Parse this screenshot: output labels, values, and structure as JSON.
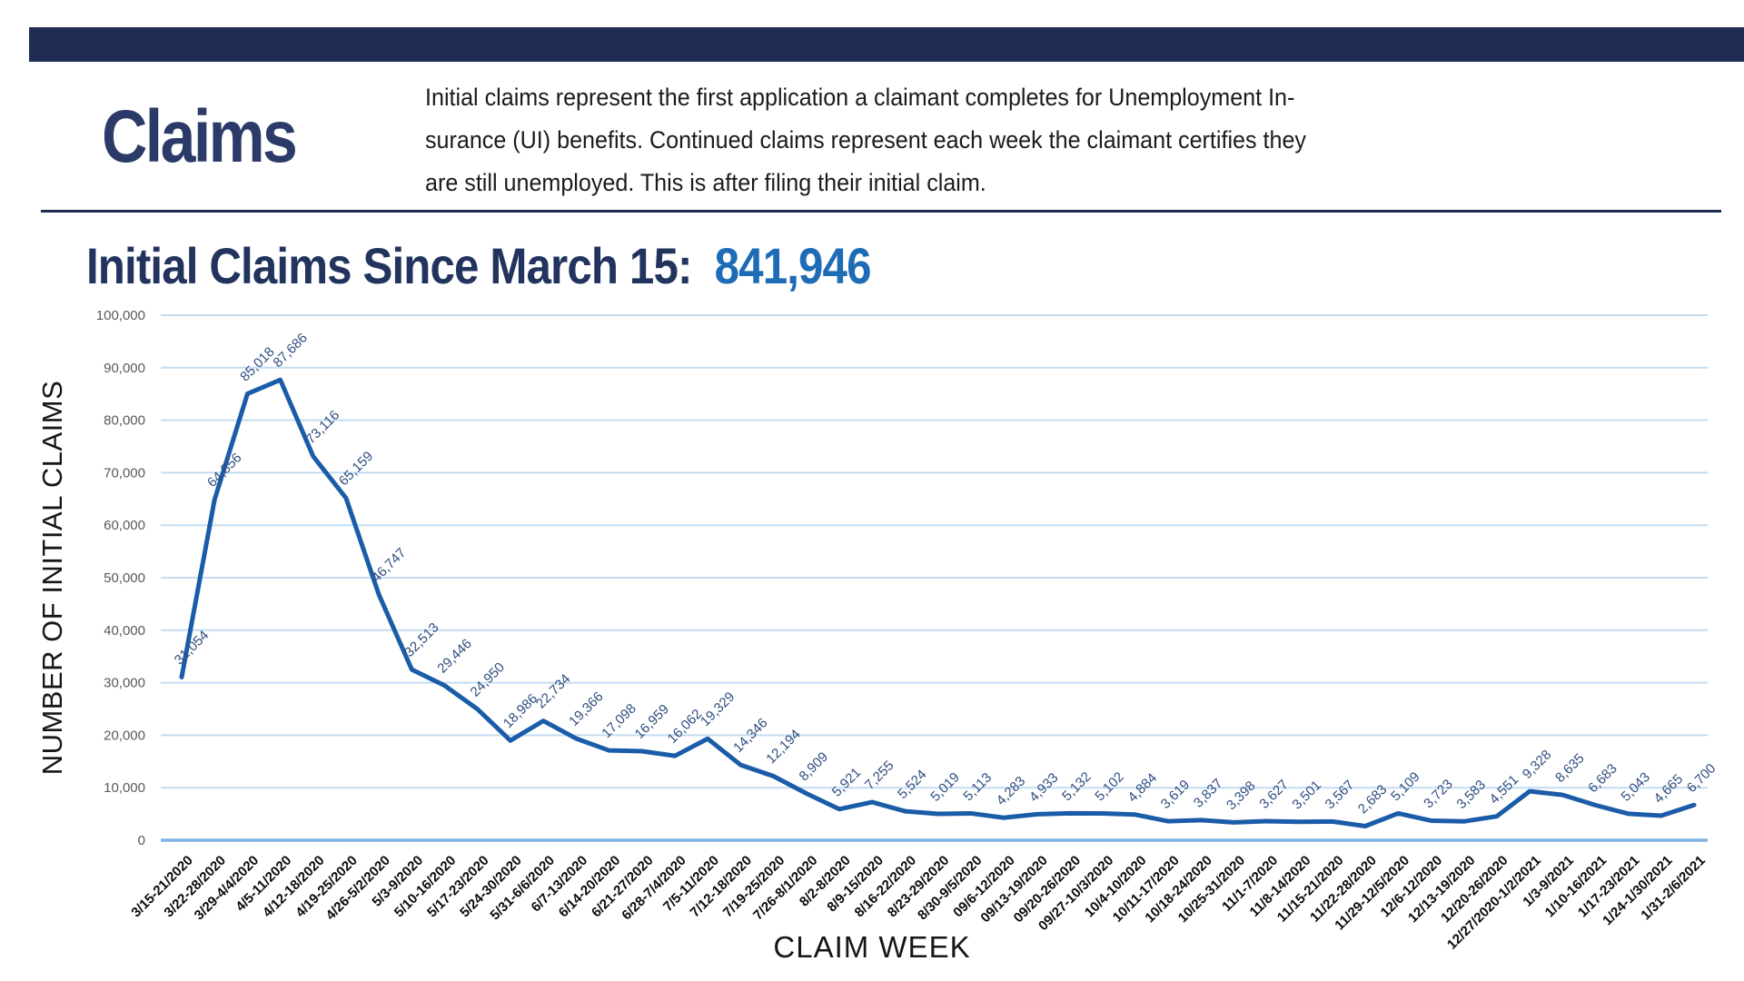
{
  "header": {
    "title": "Claims",
    "description_lines": [
      "Initial claims represent the first application a claimant completes for Unemployment In-",
      "surance (UI) benefits. Continued claims represent each week the claimant certifies they",
      "are still unemployed. This is after filing their initial claim."
    ]
  },
  "chart_title": {
    "prefix": "Initial Claims Since March 15:",
    "value": "841,946"
  },
  "colors": {
    "accent_navy": "#1f2d54",
    "heading_navy": "#2b3a68",
    "title_navy": "#22345e",
    "total_value_blue": "#1e6cb5"
  },
  "chart_data": {
    "type": "line",
    "title": "Initial Claims Since March 15: 841,946",
    "xlabel": "CLAIM WEEK",
    "ylabel": "NUMBER OF INITIAL CLAIMS",
    "ylim": [
      0,
      100000
    ],
    "ytick_step": 10000,
    "ytick_labels": [
      "0",
      "10,000",
      "20,000",
      "30,000",
      "40,000",
      "50,000",
      "60,000",
      "70,000",
      "80,000",
      "90,000",
      "100,000"
    ],
    "grid": true,
    "legend": "none",
    "colors": {
      "line": "#1a5ca8",
      "gridline": "#c3dcf1",
      "axis_line": "#7fb2e0",
      "data_label": "#2f4d7f",
      "ytick": "#595959",
      "xtick": "#0b0b0b"
    },
    "categories": [
      "3/15-21/2020",
      "3/22-28/2020",
      "3/29-4/4/2020",
      "4/5-11/2020",
      "4/12-18/2020",
      "4/19-25/2020",
      "4/26-5/2/2020",
      "5/3-9/2020",
      "5/10-16/2020",
      "5/17-23/2020",
      "5/24-30/2020",
      "5/31-6/6/2020",
      "6/7-13/2020",
      "6/14-20/2020",
      "6/21-27/2020",
      "6/28-7/4/2020",
      "7/5-11/2020",
      "7/12-18/2020",
      "7/19-25/2020",
      "7/26-8/1/2020",
      "8/2-8/2020",
      "8/9-15/2020",
      "8/16-22/2020",
      "8/23-29/2020",
      "8/30-9/5/2020",
      "09/6-12/2020",
      "09/13-19/2020",
      "09/20-26/2020",
      "09/27-10/3/2020",
      "10/4-10/2020",
      "10/11-17/2020",
      "10/18-24/2020",
      "10/25-31/2020",
      "11/1-7/2020",
      "11/8-14/2020",
      "11/15-21/2020",
      "11/22-28/2020",
      "11/29-12/5/2020",
      "12/6-12/2020",
      "12/13-19/2020",
      "12/20-26/2020",
      "12/27/2020-1/2/2021",
      "1/3-9/2021",
      "1/10-16/2021",
      "1/17-23/2021",
      "1/24-1/30/2021",
      "1/31-2/6/2021"
    ],
    "values": [
      31054,
      64856,
      85018,
      87686,
      73116,
      65159,
      46747,
      32513,
      29446,
      24950,
      18986,
      22734,
      19366,
      17098,
      16959,
      16062,
      19329,
      14346,
      12194,
      8909,
      5921,
      7255,
      5524,
      5019,
      5113,
      4283,
      4933,
      5132,
      5102,
      4884,
      3619,
      3837,
      3398,
      3627,
      3501,
      3567,
      2683,
      5109,
      3723,
      3583,
      4551,
      9328,
      8635,
      6683,
      5043,
      4665,
      6700
    ]
  }
}
